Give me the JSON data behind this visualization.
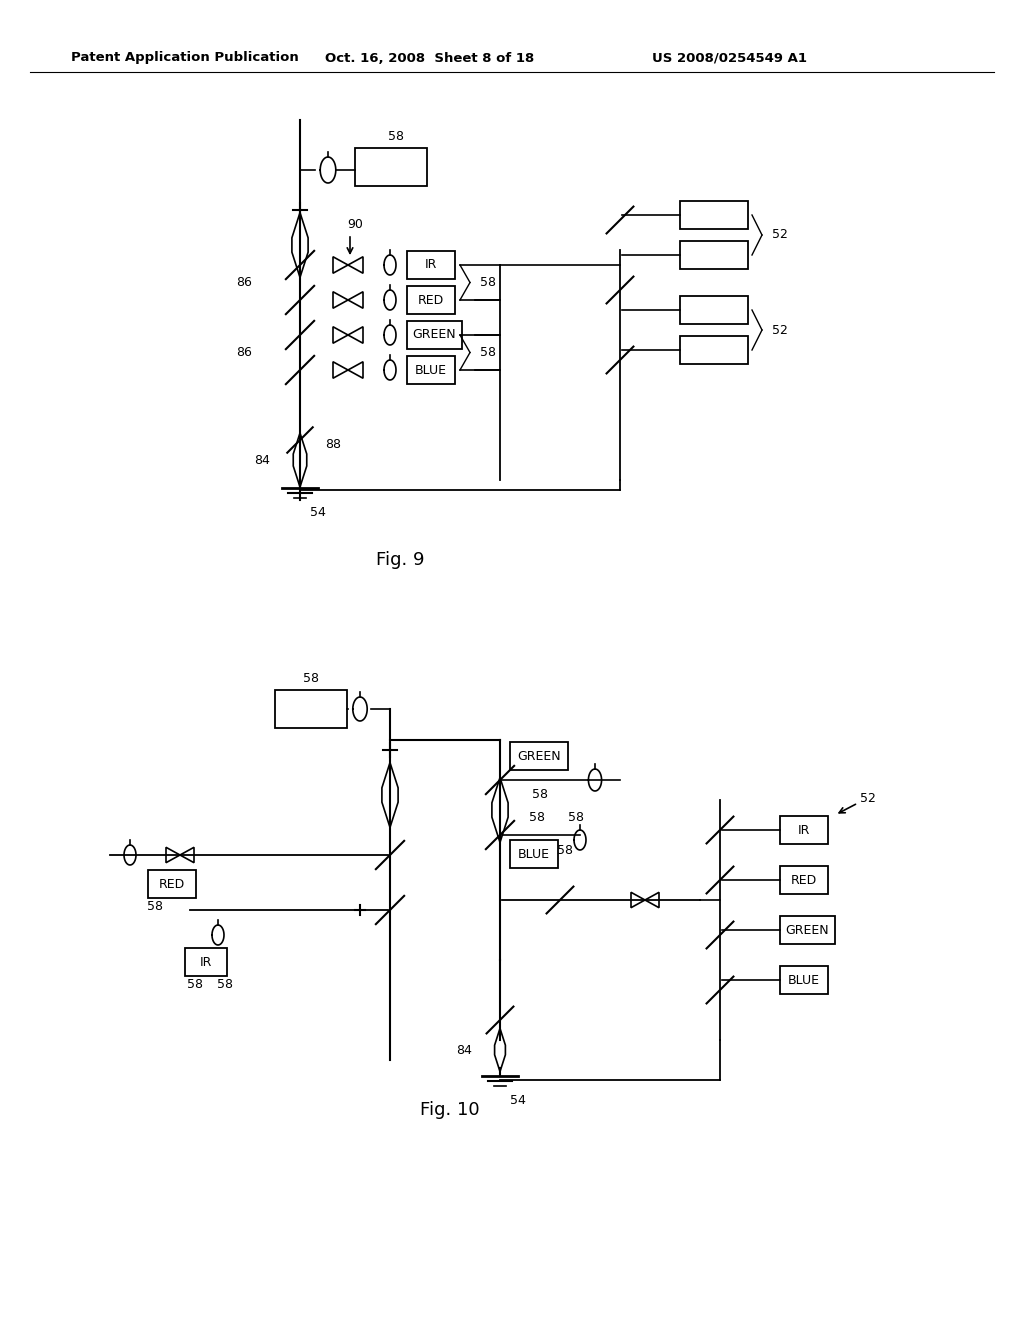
{
  "bg_color": "#ffffff",
  "header_left": "Patent Application Publication",
  "header_mid": "Oct. 16, 2008  Sheet 8 of 18",
  "header_right": "US 2008/0254549 A1",
  "fig9_label": "Fig. 9",
  "fig10_label": "Fig. 10"
}
